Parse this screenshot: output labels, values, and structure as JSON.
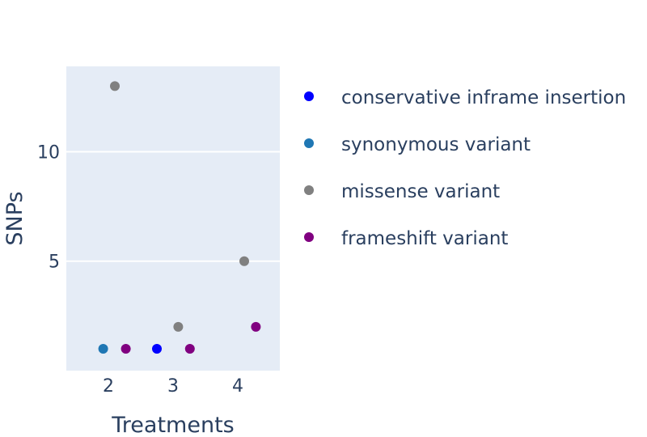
{
  "chart_data": {
    "type": "scatter",
    "xlabel": "Treatments",
    "ylabel": "SNPs",
    "xlim": [
      1.35,
      4.65
    ],
    "ylim": [
      0,
      13.9
    ],
    "xticks": [
      2,
      3,
      4
    ],
    "yticks": [
      5,
      10
    ],
    "grid": true,
    "background": "#e5ecf6",
    "legend_position": "right",
    "series": [
      {
        "name": "conservative inframe insertion",
        "color": "#0000ff",
        "points": [
          {
            "x": 2.75,
            "y": 1
          }
        ]
      },
      {
        "name": "synonymous variant",
        "color": "#1f77b4",
        "points": [
          {
            "x": 1.92,
            "y": 1
          }
        ]
      },
      {
        "name": "missense variant",
        "color": "#808080",
        "points": [
          {
            "x": 2.1,
            "y": 13
          },
          {
            "x": 3.08,
            "y": 2
          },
          {
            "x": 4.1,
            "y": 5
          }
        ]
      },
      {
        "name": "frameshift variant",
        "color": "#800080",
        "points": [
          {
            "x": 2.27,
            "y": 1
          },
          {
            "x": 3.26,
            "y": 1
          },
          {
            "x": 4.28,
            "y": 2
          }
        ]
      }
    ]
  }
}
